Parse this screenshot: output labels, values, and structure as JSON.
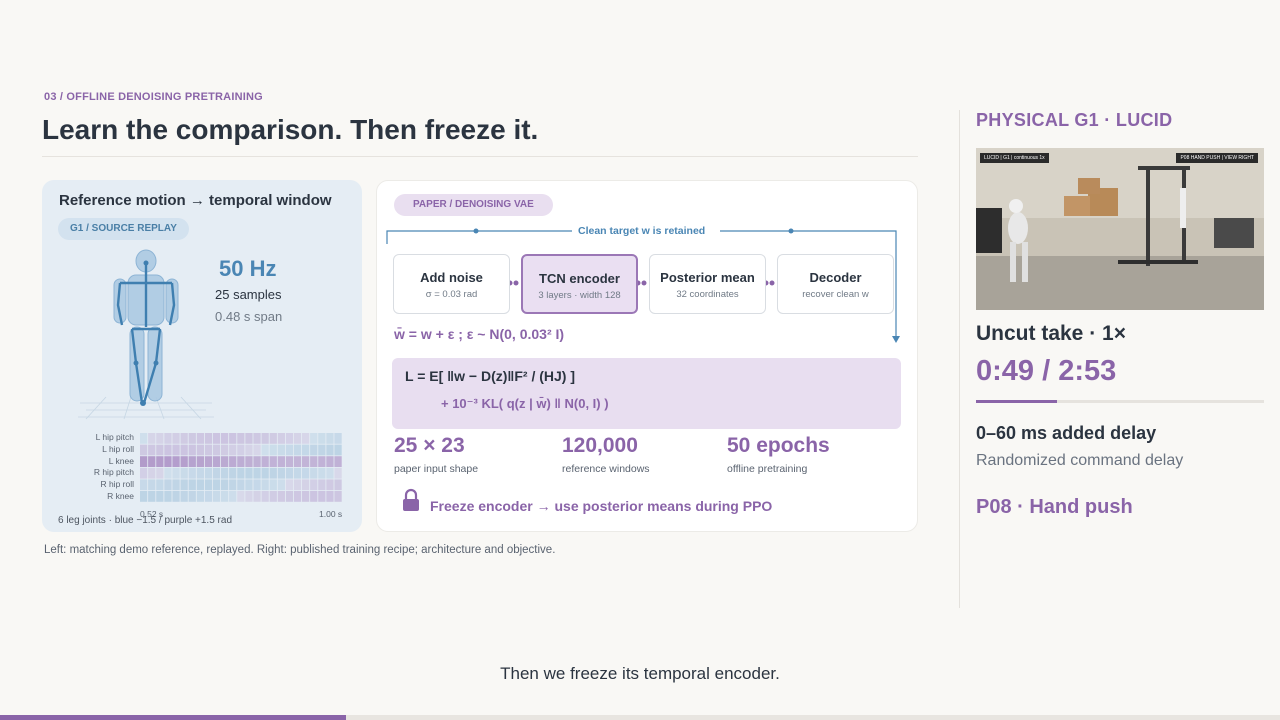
{
  "header": {
    "eyebrow": "03 / OFFLINE DENOISING PRETRAINING",
    "title": "Learn the comparison. Then freeze it."
  },
  "reference": {
    "title": "Reference motion → temporal window",
    "chip": "G1 / SOURCE REPLAY",
    "rate": "50 Hz",
    "samples": "25 samples",
    "span": "0.48 s span",
    "joints": [
      "L hip pitch",
      "L hip roll",
      "L knee",
      "R hip pitch",
      "R hip roll",
      "R knee"
    ],
    "tick_start": "0.52 s",
    "tick_end": "1.00 s",
    "footnote": "6 leg joints · blue −1.5 / purple +1.5 rad"
  },
  "paper": {
    "chip": "PAPER / DENOISING VAE",
    "clean_label": "Clean target w is retained",
    "stages": [
      {
        "title": "Add noise",
        "sub": "σ = 0.03 rad"
      },
      {
        "title": "TCN encoder",
        "sub": "3 layers · width 128"
      },
      {
        "title": "Posterior mean",
        "sub": "32 coordinates"
      },
      {
        "title": "Decoder",
        "sub": "recover clean w"
      }
    ],
    "noise_eq": "w̄ = w + ε ; ε ~ N(0, 0.03² I)",
    "loss_line1": "L = E[ ‖w − D(z)‖F² / (HJ) ]",
    "loss_line2": "+ 10⁻³ KL( q(z | w̄) ‖ N(0, I) )",
    "stats": [
      {
        "value": "25 × 23",
        "label": "paper input shape"
      },
      {
        "value": "120,000",
        "label": "reference windows"
      },
      {
        "value": "50 epochs",
        "label": "offline pretraining"
      }
    ],
    "freeze": "Freeze encoder → use posterior means during PPO"
  },
  "caption": "Left: matching demo reference, replayed. Right: published training recipe; architecture and objective.",
  "side": {
    "heading": "PHYSICAL G1 · LUCID",
    "video_tag_left": "LUCID | G1 | continuous 1x",
    "video_tag_right": "P08 HAND PUSH | VIEW RIGHT",
    "take": "Uncut take · 1×",
    "time": "0:49 / 2:53",
    "progress": 0.28,
    "delay": "0–60 ms added delay",
    "delay_sub": "Randomized command delay",
    "id": "P08 · Hand push"
  },
  "subtitle": "Then we freeze its temporal encoder.",
  "deck_progress": 0.27,
  "colors": {
    "accent": "#8a64a8",
    "blue": "#4a86b4",
    "background": "#f9f8f5"
  }
}
